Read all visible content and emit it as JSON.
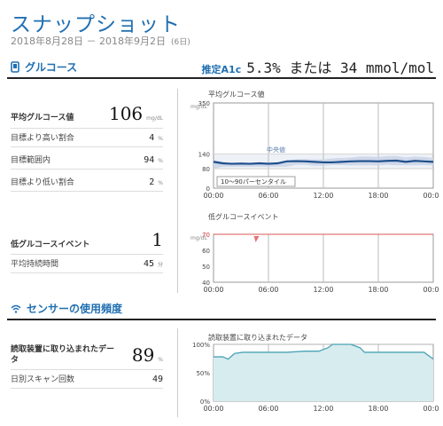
{
  "header": {
    "title": "スナップショット",
    "date_range": "2018年8月28日 － 2018年9月2日",
    "days": "(6日)"
  },
  "glucose": {
    "section_title": "グルコース",
    "a1c_label": "推定A1c",
    "a1c_value": "5.3% または 34 mmol/mol",
    "avg_label": "平均グルコース値",
    "avg_value": "106",
    "avg_unit": "mg/dL",
    "above_label": "目標より高い割合",
    "above_value": "4",
    "above_unit": "%",
    "inrange_label": "目標範囲内",
    "inrange_value": "94",
    "inrange_unit": "%",
    "below_label": "目標より低い割合",
    "below_value": "2",
    "below_unit": "%",
    "low_events_label": "低グルコースイベント",
    "low_events_value": "1",
    "low_duration_label": "平均持続時間",
    "low_duration_value": "45",
    "low_duration_unit": "分"
  },
  "sensor": {
    "section_title": "センサーの使用頻度",
    "scans_label": "読取装置に取り込まれたデータ",
    "scans_value": "89",
    "scans_unit": "%",
    "daily_label": "日別スキャン回数",
    "daily_value": "49"
  },
  "chart_data": [
    {
      "type": "line",
      "title": "平均グルコース値",
      "yunit": "mg/dL",
      "ylim": [
        0,
        350
      ],
      "yticks": [
        0,
        80,
        140,
        350
      ],
      "xticks": [
        "00:00",
        "06:00",
        "12:00",
        "18:00",
        "00:00"
      ],
      "target_band": [
        80,
        140
      ],
      "median_label": "中央値",
      "band_label": "10～90パーセンタイル",
      "x_hours": [
        0,
        1,
        2,
        3,
        4,
        5,
        6,
        7,
        8,
        9,
        10,
        11,
        12,
        13,
        14,
        15,
        16,
        17,
        18,
        19,
        20,
        21,
        22,
        23,
        24
      ],
      "median": [
        108,
        102,
        100,
        101,
        100,
        102,
        100,
        102,
        110,
        111,
        110,
        108,
        106,
        106,
        108,
        110,
        111,
        111,
        110,
        112,
        113,
        108,
        112,
        110,
        108
      ],
      "p10": [
        80,
        88,
        88,
        88,
        88,
        88,
        88,
        88,
        88,
        96,
        96,
        92,
        92,
        95,
        95,
        94,
        94,
        94,
        94,
        96,
        94,
        94,
        94,
        95,
        94
      ],
      "p90": [
        116,
        108,
        104,
        106,
        104,
        106,
        106,
        106,
        114,
        118,
        120,
        118,
        118,
        122,
        124,
        126,
        130,
        130,
        128,
        132,
        132,
        126,
        130,
        128,
        124
      ]
    },
    {
      "type": "scatter",
      "title": "低グルコースイベント",
      "yunit": "mg/dL",
      "ylim": [
        40,
        70
      ],
      "yticks": [
        40,
        50,
        60,
        70
      ],
      "threshold": 70,
      "xticks": [
        "00:00",
        "06:00",
        "12:00",
        "18:00",
        "00:00"
      ],
      "events_hours": [
        4.7
      ]
    },
    {
      "type": "area",
      "title": "読取装置に取り込まれたデータ",
      "ylim": [
        0,
        100
      ],
      "yticks": [
        "0%",
        "50%",
        "100%"
      ],
      "xticks": [
        "00:00",
        "06:00",
        "12:00",
        "18:00",
        "00:00"
      ],
      "x_hours": [
        0,
        1,
        1.6,
        2.3,
        3.2,
        8,
        10,
        11.5,
        12.5,
        13,
        15,
        16,
        16.5,
        17,
        23,
        24
      ],
      "values": [
        78,
        78,
        74,
        84,
        86,
        86,
        88,
        88,
        94,
        100,
        100,
        94,
        86,
        86,
        86,
        74
      ]
    }
  ]
}
